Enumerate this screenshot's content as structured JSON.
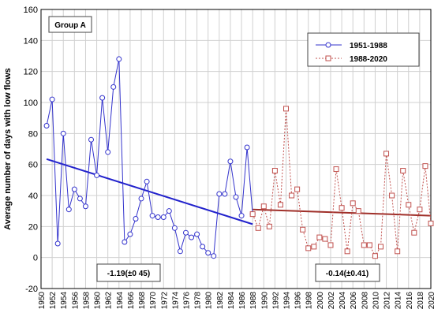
{
  "chart_data": {
    "type": "line",
    "title": "",
    "panel_label": "Group A",
    "ylabel": "Average number of days with low flows",
    "xlabel": "",
    "ylim": [
      -20,
      160
    ],
    "yticks": [
      -20,
      0,
      20,
      40,
      60,
      80,
      100,
      120,
      140,
      160
    ],
    "xlim": [
      1950,
      2020
    ],
    "xticks": [
      1950,
      1952,
      1954,
      1956,
      1958,
      1960,
      1962,
      1964,
      1966,
      1968,
      1970,
      1972,
      1974,
      1976,
      1978,
      1980,
      1982,
      1984,
      1986,
      1988,
      1990,
      1992,
      1994,
      1996,
      1998,
      2000,
      2002,
      2004,
      2006,
      2008,
      2010,
      2012,
      2014,
      2016,
      2018,
      2020
    ],
    "grid": true,
    "legend_position": "top-right",
    "series": [
      {
        "name": "1951-1988",
        "color": "#3333cc",
        "line_style": "solid",
        "marker": "circle",
        "x": [
          1951,
          1952,
          1953,
          1954,
          1955,
          1956,
          1957,
          1958,
          1959,
          1960,
          1961,
          1962,
          1963,
          1964,
          1965,
          1966,
          1967,
          1968,
          1969,
          1970,
          1971,
          1972,
          1973,
          1974,
          1975,
          1976,
          1977,
          1978,
          1979,
          1980,
          1981,
          1982,
          1983,
          1984,
          1985,
          1986,
          1987,
          1988
        ],
        "values": [
          85,
          102,
          9,
          80,
          31,
          44,
          38,
          33,
          76,
          53,
          103,
          68,
          110,
          128,
          10,
          15,
          25,
          38,
          49,
          27,
          26,
          26,
          30,
          19,
          4,
          16,
          13,
          15,
          7,
          3,
          1,
          41,
          41,
          62,
          39,
          27,
          71,
          28
        ]
      },
      {
        "name": "1988-2020",
        "color": "#c0504d",
        "line_style": "dotted",
        "marker": "square",
        "x": [
          1988,
          1989,
          1990,
          1991,
          1992,
          1993,
          1994,
          1995,
          1996,
          1997,
          1998,
          1999,
          2000,
          2001,
          2002,
          2003,
          2004,
          2005,
          2006,
          2007,
          2008,
          2009,
          2010,
          2011,
          2012,
          2013,
          2014,
          2015,
          2016,
          2017,
          2018,
          2019,
          2020
        ],
        "values": [
          28,
          19,
          33,
          20,
          56,
          34,
          96,
          40,
          44,
          18,
          6,
          7,
          13,
          12,
          8,
          57,
          32,
          4,
          35,
          30,
          8,
          8,
          1,
          7,
          67,
          40,
          4,
          56,
          34,
          16,
          31,
          59,
          22
        ]
      }
    ],
    "trend_lines": [
      {
        "name": "trend-1951-1988",
        "color": "#2222cc",
        "x": [
          1951,
          1988
        ],
        "values": [
          63.5,
          21.5
        ]
      },
      {
        "name": "trend-1988-2020",
        "color": "#a0302a",
        "x": [
          1988,
          2020
        ],
        "values": [
          31,
          27
        ]
      }
    ],
    "annotations": [
      "-1.19(±0 45)",
      "-0.14(±0.41)"
    ]
  }
}
